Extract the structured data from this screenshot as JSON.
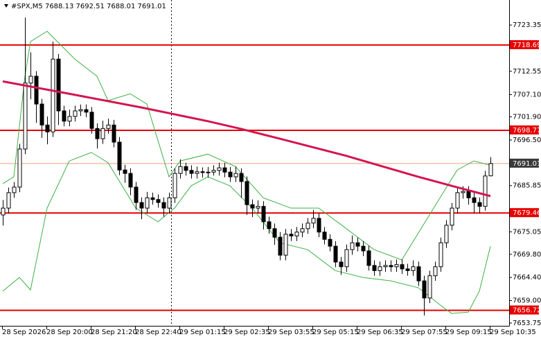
{
  "chart_data": {
    "type": "candlestick",
    "title": "#SPX,M5  7688.13 7692.51 7688.01 7691.01",
    "ohlc": [
      [
        7679.0,
        7682.5,
        7676.5,
        7680.6
      ],
      [
        7680.6,
        7685.4,
        7679.4,
        7684.2
      ],
      [
        7684.2,
        7686.7,
        7683.0,
        7685.5
      ],
      [
        7685.5,
        7695.6,
        7684.3,
        7694.4
      ],
      [
        7694.4,
        7725.1,
        7693.2,
        7709.8
      ],
      [
        7709.8,
        7717.0,
        7706.0,
        7711.4
      ],
      [
        7711.4,
        7712.6,
        7700.5,
        7704.9
      ],
      [
        7704.9,
        7706.1,
        7697.0,
        7700.0
      ],
      [
        7700.0,
        7702.0,
        7695.5,
        7698.4
      ],
      [
        7698.4,
        7719.5,
        7697.2,
        7715.4
      ],
      [
        7715.4,
        7716.6,
        7700.0,
        7703.3
      ],
      [
        7703.3,
        7704.5,
        7699.7,
        7700.9
      ],
      [
        7700.9,
        7703.6,
        7699.7,
        7702.0
      ],
      [
        7702.0,
        7704.5,
        7700.8,
        7703.3
      ],
      [
        7703.3,
        7704.8,
        7702.1,
        7703.6
      ],
      [
        7703.6,
        7704.8,
        7701.8,
        7703.0
      ],
      [
        7703.0,
        7704.2,
        7698.0,
        7699.2
      ],
      [
        7699.2,
        7700.4,
        7694.5,
        7696.8
      ],
      [
        7696.8,
        7701.0,
        7695.6,
        7699.2
      ],
      [
        7699.2,
        7701.5,
        7698.0,
        7700.0
      ],
      [
        7700.0,
        7701.2,
        7694.8,
        7696.0
      ],
      [
        7696.0,
        7697.2,
        7688.3,
        7689.5
      ],
      [
        7689.5,
        7690.7,
        7686.5,
        7688.7
      ],
      [
        7688.7,
        7689.9,
        7683.6,
        7685.5
      ],
      [
        7685.5,
        7686.7,
        7680.2,
        7681.9
      ],
      [
        7681.9,
        7683.1,
        7678.0,
        7680.6
      ],
      [
        7680.6,
        7684.4,
        7679.4,
        7683.0
      ],
      [
        7683.0,
        7684.2,
        7681.4,
        7682.6
      ],
      [
        7682.6,
        7683.8,
        7680.7,
        7681.9
      ],
      [
        7681.9,
        7683.1,
        7678.6,
        7680.6
      ],
      [
        7680.6,
        7684.2,
        7679.4,
        7683.0
      ],
      [
        7683.0,
        7689.9,
        7681.8,
        7688.7
      ],
      [
        7688.7,
        7692.0,
        7687.5,
        7690.3
      ],
      [
        7690.3,
        7691.2,
        7688.2,
        7689.4
      ],
      [
        7689.4,
        7690.6,
        7687.5,
        7688.7
      ],
      [
        7688.7,
        7690.3,
        7687.5,
        7689.1
      ],
      [
        7689.1,
        7690.1,
        7687.7,
        7688.9
      ],
      [
        7688.9,
        7690.2,
        7687.7,
        7689.0
      ],
      [
        7689.0,
        7690.6,
        7688.2,
        7689.4
      ],
      [
        7689.4,
        7691.2,
        7688.2,
        7690.0
      ],
      [
        7690.0,
        7691.2,
        7687.8,
        7689.0
      ],
      [
        7689.0,
        7690.2,
        7686.7,
        7687.9
      ],
      [
        7687.9,
        7690.3,
        7686.7,
        7688.7
      ],
      [
        7688.7,
        7689.9,
        7683.0,
        7686.8
      ],
      [
        7686.8,
        7688.0,
        7679.0,
        7681.4
      ],
      [
        7681.4,
        7682.6,
        7678.5,
        7680.6
      ],
      [
        7680.6,
        7682.4,
        7679.4,
        7681.0
      ],
      [
        7681.0,
        7682.2,
        7675.6,
        7677.4
      ],
      [
        7677.4,
        7678.6,
        7674.6,
        7675.8
      ],
      [
        7675.8,
        7677.0,
        7672.0,
        7673.8
      ],
      [
        7673.8,
        7675.0,
        7668.4,
        7669.6
      ],
      [
        7669.6,
        7675.7,
        7668.4,
        7674.5
      ],
      [
        7674.5,
        7675.7,
        7672.9,
        7674.1
      ],
      [
        7674.1,
        7676.2,
        7672.9,
        7675.0
      ],
      [
        7675.0,
        7677.0,
        7673.8,
        7675.8
      ],
      [
        7675.8,
        7678.3,
        7674.6,
        7677.1
      ],
      [
        7677.1,
        7680.2,
        7675.9,
        7678.2
      ],
      [
        7678.2,
        7679.4,
        7673.8,
        7675.0
      ],
      [
        7675.0,
        7676.2,
        7672.1,
        7673.3
      ],
      [
        7673.3,
        7674.5,
        7670.5,
        7671.7
      ],
      [
        7671.7,
        7672.9,
        7666.8,
        7668.0
      ],
      [
        7668.0,
        7669.2,
        7665.0,
        7666.9
      ],
      [
        7666.9,
        7672.1,
        7665.7,
        7670.9
      ],
      [
        7670.9,
        7674.2,
        7669.7,
        7672.5
      ],
      [
        7672.5,
        7673.7,
        7670.5,
        7671.7
      ],
      [
        7671.7,
        7672.9,
        7669.4,
        7670.6
      ],
      [
        7670.6,
        7671.8,
        7666.0,
        7667.2
      ],
      [
        7667.2,
        7668.4,
        7664.8,
        7666.0
      ],
      [
        7666.0,
        7668.1,
        7664.8,
        7666.9
      ],
      [
        7666.9,
        7668.4,
        7665.7,
        7667.2
      ],
      [
        7667.2,
        7668.4,
        7665.7,
        7666.9
      ],
      [
        7666.9,
        7668.6,
        7665.7,
        7667.4
      ],
      [
        7667.4,
        7668.6,
        7665.2,
        7666.4
      ],
      [
        7666.4,
        7667.6,
        7664.8,
        7666.0
      ],
      [
        7666.0,
        7668.4,
        7664.8,
        7666.9
      ],
      [
        7666.9,
        7668.1,
        7662.4,
        7663.6
      ],
      [
        7663.6,
        7664.8,
        7655.5,
        7659.6
      ],
      [
        7659.6,
        7666.0,
        7658.4,
        7664.8
      ],
      [
        7664.8,
        7668.1,
        7663.6,
        7666.9
      ],
      [
        7666.9,
        7673.7,
        7665.7,
        7672.5
      ],
      [
        7672.5,
        7677.8,
        7671.3,
        7676.6
      ],
      [
        7676.6,
        7681.8,
        7675.4,
        7680.6
      ],
      [
        7680.6,
        7685.4,
        7679.4,
        7684.2
      ],
      [
        7684.2,
        7685.7,
        7682.8,
        7684.5
      ],
      [
        7684.5,
        7685.7,
        7681.4,
        7683.0
      ],
      [
        7683.0,
        7684.2,
        7679.4,
        7681.9
      ],
      [
        7681.9,
        7683.1,
        7679.4,
        7681.0
      ],
      [
        7681.0,
        7689.3,
        7680.0,
        7688.1
      ],
      [
        7688.13,
        7692.51,
        7688.01,
        7691.01
      ]
    ],
    "lines": [
      {
        "color": "#d4154f",
        "x": [
          0,
          12,
          25,
          37,
          43,
          50,
          62,
          75,
          81,
          88
        ],
        "values": [
          7710.2,
          7707.3,
          7704.1,
          7700.9,
          7699.1,
          7696.8,
          7692.8,
          7687.9,
          7685.8,
          7683.4
        ]
      },
      {
        "color": "#3cb043",
        "x": [
          0,
          2,
          4,
          5,
          8,
          13,
          17,
          19,
          23,
          26,
          30,
          32,
          37,
          42,
          47,
          52,
          57,
          62,
          67,
          72,
          77,
          82,
          85,
          88
        ],
        "values": [
          7686.3,
          7687.9,
          7711.4,
          7719.5,
          7721.9,
          7715.4,
          7711.4,
          7705.7,
          7707.3,
          7704.9,
          7687.9,
          7691.6,
          7693.2,
          7690.3,
          7683.0,
          7680.6,
          7680.6,
          7675.8,
          7670.9,
          7668.5,
          7679.0,
          7689.5,
          7691.6,
          7690.6
        ]
      },
      {
        "color": "#3cb043",
        "x": [
          0,
          3,
          5,
          8,
          12,
          16,
          19,
          24,
          28,
          31,
          34,
          37,
          41,
          45,
          50,
          55,
          60,
          65,
          70,
          75,
          79,
          81,
          84,
          86,
          88
        ],
        "values": [
          7661.2,
          7664.4,
          7661.5,
          7680.6,
          7691.6,
          7693.6,
          7691.2,
          7680.6,
          7677.4,
          7680.6,
          7685.8,
          7687.9,
          7685.8,
          7680.6,
          7672.5,
          7670.9,
          7666.0,
          7664.4,
          7663.6,
          7662.0,
          7657.9,
          7656.0,
          7656.3,
          7661.2,
          7671.7
        ]
      }
    ],
    "levels": [
      7718.69,
      7698.77,
      7679.46,
      7656.72
    ],
    "level_color": "#e60000",
    "ylim": [
      7653.1,
      7729.2
    ],
    "yticks": [
      7723.35,
      7712.55,
      {
        "value": 7707.1,
        "label": "7707.10"
      },
      {
        "value": 7701.9,
        "label": "7701.90"
      },
      {
        "value": 7696.5,
        "label": "7696.50"
      },
      7685.85,
      7675.05,
      {
        "value": 7669.8,
        "label": "7669.80"
      },
      {
        "value": 7664.4,
        "label": "7664.40"
      },
      {
        "value": 7659,
        "label": "7659.00"
      },
      7653.75
    ],
    "x_labels": [
      "28 Sep 2026",
      "28 Sep 20:00",
      "28 Sep 21:20",
      "28 Sep 22:40",
      "29 Sep 01:15",
      "29 Sep 02:35",
      "29 Sep 03:55",
      "29 Sep 05:15",
      "29 Sep 06:35",
      "29 Sep 07:55",
      "29 Sep 09:15",
      "29 Sep 10:35"
    ]
  }
}
